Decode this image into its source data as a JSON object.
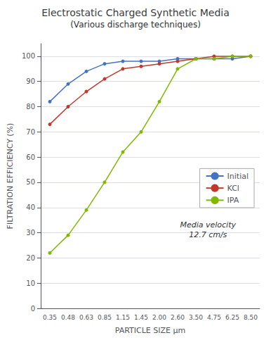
{
  "chart_data": {
    "type": "line",
    "title": "Electrostatic Charged Synthetic Media",
    "subtitle": "(Various discharge techniques)",
    "x_label": "PARTICLE SIZE μm",
    "y_label": "FILTRATION EFFICIENCY (%)",
    "categories": [
      "0.35",
      "0.48",
      "0.63",
      "0.85",
      "1.15",
      "1.45",
      "2.00",
      "2.60",
      "3.50",
      "4.75",
      "6.25",
      "8.50"
    ],
    "series": [
      {
        "name": "Initial",
        "color": "#4472C4",
        "marker": "circle",
        "values": [
          82,
          89,
          94,
          97,
          98,
          98,
          98,
          99,
          99,
          99,
          99,
          100
        ]
      },
      {
        "name": "KCl",
        "color": "#C0392B",
        "marker": "circle",
        "values": [
          73,
          80,
          86,
          91,
          95,
          96,
          97,
          98,
          99,
          100,
          100,
          100
        ]
      },
      {
        "name": "IPA",
        "color": "#7FBA00",
        "marker": "circle",
        "values": [
          22,
          29,
          39,
          50,
          62,
          70,
          82,
          95,
          99,
          99,
          100,
          100
        ]
      }
    ],
    "ylim": [
      0,
      105
    ],
    "yticks": [
      0,
      10,
      20,
      30,
      40,
      50,
      60,
      70,
      80,
      90,
      100
    ],
    "grid": true,
    "legend": "lower right",
    "annotation": "Media velocity\n12.7 cm/s"
  }
}
